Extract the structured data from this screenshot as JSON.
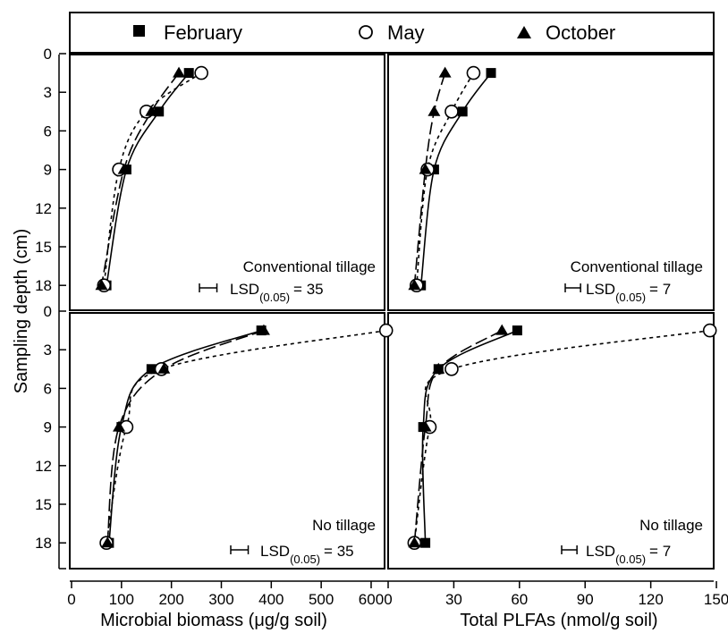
{
  "legend": [
    {
      "name": "February",
      "marker": "square"
    },
    {
      "name": "May",
      "marker": "circle"
    },
    {
      "name": "October",
      "marker": "triangle"
    }
  ],
  "ylabel": "Sampling depth (cm)",
  "y_ticks": [
    "0",
    "3",
    "6",
    "9",
    "12",
    "15",
    "18"
  ],
  "x_left_label": "Microbial biomass (μg/g soil)",
  "x_left_ticks": [
    "0",
    "100",
    "200",
    "300",
    "400",
    "500",
    "600"
  ],
  "x_right_label": "Total PLFAs (nmol/g soil)",
  "x_right_ticks": [
    "0",
    "30",
    "60",
    "90",
    "120",
    "150"
  ],
  "lsd_label": "LSD",
  "lsd_sub": "(0.05)",
  "panel_labels": {
    "conventional": "Conventional tillage",
    "no_till": "No tillage",
    "lsd_biomass": "= 35",
    "lsd_plfa": "= 7"
  },
  "chart_data": [
    {
      "type": "scatter",
      "panel": "top-left",
      "title": "Conventional tillage",
      "xlabel": "Microbial biomass (μg/g soil)",
      "ylabel": "Sampling depth (cm)",
      "xlim": [
        0,
        640
      ],
      "ylim": [
        0,
        20
      ],
      "y_inverted": true,
      "lsd": 35,
      "depths": [
        1.5,
        4.5,
        9,
        18
      ],
      "series": [
        {
          "name": "February",
          "x": [
            235,
            175,
            110,
            70
          ],
          "fit": "solid"
        },
        {
          "name": "May",
          "x": [
            260,
            150,
            95,
            65
          ],
          "fit": "dotted"
        },
        {
          "name": "October",
          "x": [
            215,
            160,
            105,
            60
          ],
          "fit": "dashed"
        }
      ]
    },
    {
      "type": "scatter",
      "panel": "top-right",
      "title": "Conventional tillage",
      "xlabel": "Total PLFAs (nmol/g soil)",
      "ylabel": "Sampling depth (cm)",
      "xlim": [
        0,
        150
      ],
      "ylim": [
        0,
        20
      ],
      "y_inverted": true,
      "lsd": 7,
      "depths": [
        1.5,
        4.5,
        9,
        18
      ],
      "series": [
        {
          "name": "February",
          "x": [
            47,
            34,
            21,
            15
          ],
          "fit": "solid"
        },
        {
          "name": "May",
          "x": [
            39,
            29,
            18,
            13
          ],
          "fit": "dotted"
        },
        {
          "name": "October",
          "x": [
            26,
            21,
            17,
            12
          ],
          "fit": "dashed"
        }
      ]
    },
    {
      "type": "scatter",
      "panel": "bottom-left",
      "title": "No tillage",
      "xlabel": "Microbial biomass (μg/g soil)",
      "ylabel": "Sampling depth (cm)",
      "xlim": [
        0,
        640
      ],
      "ylim": [
        0,
        20
      ],
      "y_inverted": true,
      "lsd": 35,
      "depths": [
        1.5,
        4.5,
        9,
        18
      ],
      "series": [
        {
          "name": "February",
          "x": [
            380,
            160,
            100,
            75
          ],
          "fit": "solid"
        },
        {
          "name": "May",
          "x": [
            630,
            180,
            110,
            70
          ],
          "fit": "dotted"
        },
        {
          "name": "October",
          "x": [
            385,
            185,
            95,
            72
          ],
          "fit": "dashed"
        }
      ]
    },
    {
      "type": "scatter",
      "panel": "bottom-right",
      "title": "No tillage",
      "xlabel": "Total PLFAs (nmol/g soil)",
      "ylabel": "Sampling depth (cm)",
      "xlim": [
        0,
        150
      ],
      "ylim": [
        0,
        20
      ],
      "y_inverted": true,
      "lsd": 7,
      "depths": [
        1.5,
        4.5,
        9,
        18
      ],
      "series": [
        {
          "name": "February",
          "x": [
            59,
            23,
            16,
            17
          ],
          "fit": "solid"
        },
        {
          "name": "May",
          "x": [
            147,
            29,
            19,
            12
          ],
          "fit": "dotted"
        },
        {
          "name": "October",
          "x": [
            52,
            23,
            17,
            12
          ],
          "fit": "dashed"
        }
      ]
    }
  ]
}
